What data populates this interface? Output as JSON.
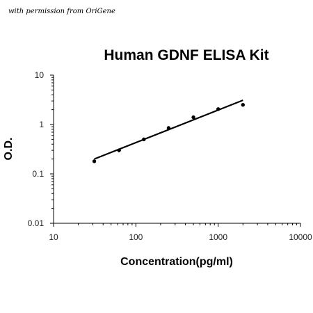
{
  "credit": "with permission from OriGene",
  "chart_data": {
    "type": "scatter",
    "title": "Human GDNF ELISA Kit",
    "xlabel": "Concentration(pg/ml)",
    "ylabel": "O.D.",
    "xscale": "log",
    "yscale": "log",
    "xlim": [
      10,
      10000
    ],
    "ylim": [
      0.01,
      10
    ],
    "xticks": [
      10,
      100,
      1000,
      10000
    ],
    "xtick_labels": [
      "10",
      "100",
      "1000",
      "10000"
    ],
    "yticks": [
      0.01,
      0.1,
      1,
      10
    ],
    "ytick_labels": [
      "0.01",
      "0.1",
      "1",
      "10"
    ],
    "grid": false,
    "legend": "none",
    "series": [
      {
        "x": [
          31.25,
          62.5,
          125,
          250,
          500,
          1000,
          2000
        ],
        "y": [
          0.18,
          0.3,
          0.5,
          0.85,
          1.4,
          2.05,
          2.5
        ]
      }
    ],
    "trendline": {
      "type": "power",
      "x": [
        31.25,
        2000
      ],
      "y": [
        0.2,
        3.1
      ]
    },
    "colors": {
      "points": "#000000",
      "line": "#000000",
      "axis": "#000000"
    }
  }
}
